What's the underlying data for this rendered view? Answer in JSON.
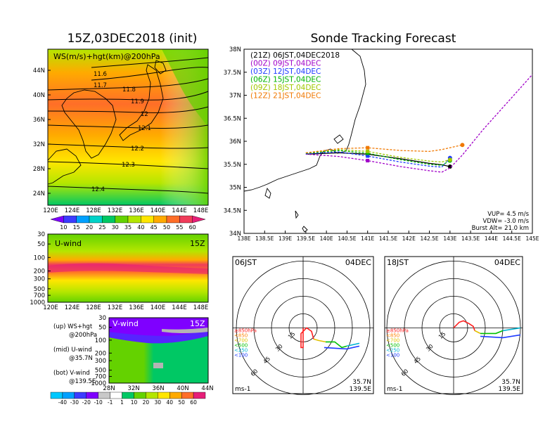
{
  "left_title": "15Z,03DEC2018 (init)",
  "right_title": "Sonde Tracking Forecast",
  "map_panel": {
    "label": "WS(m/s)+hgt(km)@200hPa",
    "lat_ticks": [
      "44N",
      "40N",
      "36N",
      "32N",
      "28N",
      "24N"
    ],
    "lon_ticks": [
      "120E",
      "124E",
      "128E",
      "132E",
      "136E",
      "140E",
      "144E",
      "148E"
    ],
    "contour_labels": [
      "11.6",
      "11.7",
      "11.8",
      "11.9",
      "12",
      "12.1",
      "12.2",
      "12.3",
      "12.4"
    ],
    "colorbar_ticks": [
      "10",
      "15",
      "20",
      "25",
      "30",
      "35",
      "40",
      "45",
      "50",
      "55",
      "60"
    ],
    "colors": [
      "#7f00ff",
      "#3c3cff",
      "#00a0ff",
      "#00d2c8",
      "#00c864",
      "#64d200",
      "#b4e600",
      "#ffe600",
      "#ffaa00",
      "#ff6e28",
      "#f03c5a",
      "#e61e78"
    ]
  },
  "uwind_panel": {
    "label": "U-wind",
    "time": "15Z",
    "p_ticks": [
      "30",
      "50",
      "100",
      "200",
      "300",
      "500",
      "700",
      "1000"
    ],
    "lon_ticks": [
      "120E",
      "124E",
      "128E",
      "132E",
      "136E",
      "140E",
      "144E",
      "148E"
    ]
  },
  "vwind_panel": {
    "label": "V-wind",
    "time": "15Z",
    "p_ticks": [
      "30",
      "50",
      "100",
      "200",
      "300",
      "500",
      "700",
      "1000"
    ],
    "lat_ticks": [
      "28N",
      "32N",
      "36N",
      "40N",
      "44N"
    ],
    "colorbar_ticks": [
      "-40",
      "-30",
      "-20",
      "-10",
      "-1",
      "1",
      "10",
      "20",
      "30",
      "40",
      "50",
      "60"
    ]
  },
  "legend_notes": {
    "up": "(up) WS+hgt",
    "up2": "@200hPa",
    "mid": "(mid) U-wind",
    "mid2": "@35.7N",
    "bot": "(bot) V-wind",
    "bot2": "@139.5E"
  },
  "track_panel": {
    "lat_ticks": [
      "38N",
      "37.5N",
      "37N",
      "36.5N",
      "36N",
      "35.5N",
      "35N",
      "34.5N",
      "34N"
    ],
    "lon_ticks": [
      "138E",
      "138.5E",
      "139E",
      "139.5E",
      "140E",
      "140.5E",
      "141E",
      "141.5E",
      "142E",
      "142.5E",
      "143E",
      "143.5E",
      "144E",
      "144.5E",
      "145E"
    ],
    "vup": "VUP= 4.5 m/s",
    "vdw": "VDW= -3.0 m/s",
    "burst": "Burst Alt= 21.0 km"
  },
  "chart_data": {
    "type": "line",
    "title": "Sonde Tracking Forecast",
    "xlabel": "",
    "ylabel": "",
    "xlim": [
      138,
      145
    ],
    "ylim": [
      34,
      38
    ],
    "grid": false,
    "legend_placement": "top-left",
    "series": [
      {
        "name": "(21Z) 06JST,04DEC2018",
        "color": "#000000",
        "x": [
          139.5,
          140.3,
          141.0,
          141.8,
          142.5,
          142.8,
          143.0
        ],
        "y": [
          35.72,
          35.75,
          35.72,
          35.62,
          35.52,
          35.49,
          35.45
        ]
      },
      {
        "name": "(00Z) 09JST,04DEC",
        "color": "#a000c8",
        "x": [
          139.5,
          140.3,
          141.0,
          141.8,
          142.5,
          142.8,
          143.0,
          143.3,
          143.8,
          144.5,
          145.0
        ],
        "y": [
          35.72,
          35.67,
          35.58,
          35.45,
          35.36,
          35.33,
          35.42,
          35.7,
          36.25,
          36.95,
          37.45
        ]
      },
      {
        "name": "(03Z) 12JST,04DEC",
        "color": "#1e3cff",
        "x": [
          139.5,
          140.3,
          141.0,
          141.8,
          142.5,
          142.8,
          143.0
        ],
        "y": [
          35.73,
          35.77,
          35.68,
          35.55,
          35.46,
          35.44,
          35.64
        ]
      },
      {
        "name": "(06Z) 15JST,04DEC",
        "color": "#00b400",
        "x": [
          139.5,
          140.3,
          141.0,
          141.8,
          142.5,
          142.8,
          143.0
        ],
        "y": [
          35.74,
          35.8,
          35.74,
          35.6,
          35.5,
          35.48,
          35.58
        ]
      },
      {
        "name": "(09Z) 18JST,04DEC",
        "color": "#a0c800",
        "x": [
          139.5,
          140.3,
          141.0,
          141.8,
          142.5,
          142.8,
          143.0
        ],
        "y": [
          35.75,
          35.82,
          35.78,
          35.65,
          35.57,
          35.55,
          35.6
        ]
      },
      {
        "name": "(12Z) 21JST,04DEC",
        "color": "#f07800",
        "x": [
          139.5,
          140.3,
          141.0,
          141.8,
          142.5,
          142.8,
          143.3
        ],
        "y": [
          35.75,
          35.84,
          35.86,
          35.8,
          35.78,
          35.82,
          35.92
        ]
      }
    ]
  },
  "hodo_left": {
    "left_label": "06JST",
    "right_label": "04DEC",
    "lat": "35.7N",
    "lon": "139.5E",
    "unit": "ms-1",
    "rings": [
      "15",
      "30",
      "45",
      "60"
    ],
    "pressure_legend": [
      {
        "text": "≥850hPa",
        "color": "#ff2020"
      },
      {
        "text": "<850",
        "color": "#ff8000"
      },
      {
        "text": "<700",
        "color": "#e0c000"
      },
      {
        "text": "<500",
        "color": "#00c000"
      },
      {
        "text": "<250",
        "color": "#00b4d2"
      },
      {
        "text": "<100",
        "color": "#1e3cff"
      }
    ]
  },
  "hodo_right": {
    "left_label": "18JST",
    "right_label": "04DEC",
    "lat": "35.7N",
    "lon": "139.5E",
    "unit": "ms-1",
    "rings": [
      "15",
      "30",
      "45",
      "60"
    ],
    "pressure_legend": [
      {
        "text": "≥850hPa",
        "color": "#ff2020"
      },
      {
        "text": "<850",
        "color": "#ff8000"
      },
      {
        "text": "<700",
        "color": "#e0c000"
      },
      {
        "text": "<500",
        "color": "#00c000"
      },
      {
        "text": "<250",
        "color": "#00b4d2"
      },
      {
        "text": "<100",
        "color": "#1e3cff"
      }
    ]
  }
}
